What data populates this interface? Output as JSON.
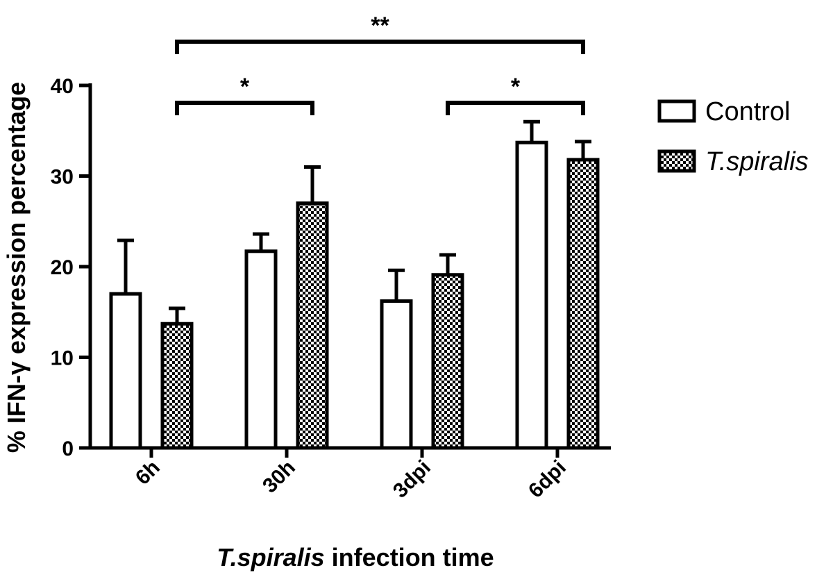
{
  "chart_data": {
    "type": "bar",
    "categories": [
      "6h",
      "30h",
      "3dpi",
      "6dpi"
    ],
    "series": [
      {
        "name": "Control",
        "pattern": "open",
        "values": [
          17.0,
          21.7,
          16.2,
          33.7
        ],
        "errors": [
          5.9,
          1.9,
          3.4,
          2.3
        ]
      },
      {
        "name": "T.spiralis",
        "pattern": "checkered",
        "values": [
          13.7,
          27.0,
          19.1,
          31.8
        ],
        "errors": [
          1.7,
          4.0,
          2.2,
          2.0
        ]
      }
    ],
    "ylabel": "% IFN-γ expression percentage",
    "xlabel_italic": "T.spiralis",
    "xlabel_rest": " infection time",
    "ylim": [
      0,
      40
    ],
    "yticks": [
      "0",
      "10",
      "20",
      "30",
      "40"
    ],
    "significance": [
      {
        "from_category": 0,
        "to_category": 1,
        "label": "*"
      },
      {
        "from_category": 2,
        "to_category": 3,
        "label": "*"
      },
      {
        "from_category": 0,
        "to_category": 3,
        "label": "**"
      }
    ],
    "legend_position": "right",
    "colors": {
      "ink": "#000000",
      "open_fill": "#ffffff"
    }
  }
}
